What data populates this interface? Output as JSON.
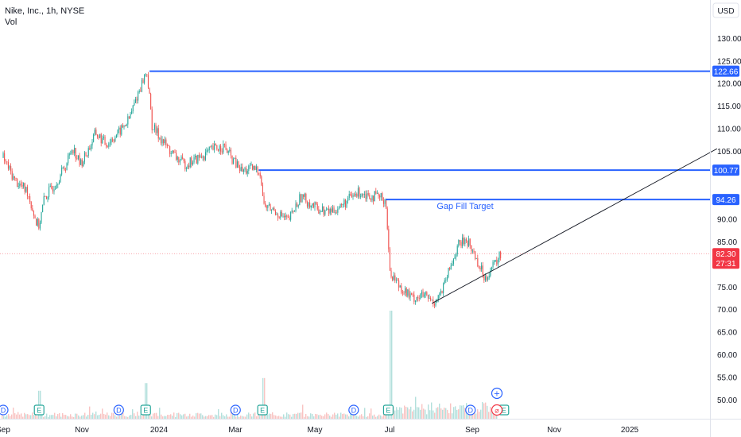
{
  "legend": {
    "symbol_line": "Nike, Inc., 1h, NYSE",
    "volume_label": "Vol"
  },
  "currency_button": "USD",
  "annotation_text": "Gap Fill Target",
  "colors": {
    "up": "#26a69a",
    "down": "#ef5350",
    "level_line": "#2962ff",
    "trend_line": "#131722",
    "price_tag": "#f23645"
  },
  "event_marker_labels": {
    "dividend": "D",
    "earnings": "E"
  },
  "chart_data": {
    "type": "candlestick",
    "title": "Nike, Inc., 1h, NYSE",
    "y_axis": {
      "ticks": [
        50,
        55,
        60,
        65,
        70,
        75,
        80,
        85,
        90,
        95,
        100,
        105,
        110,
        115,
        120,
        125,
        130
      ],
      "tick_labels": [
        "50.00",
        "55.00",
        "60.00",
        "65.00",
        "70.00",
        "75.00",
        "80.00",
        "85.00",
        "90.00",
        "",
        "",
        "105.00",
        "110.00",
        "115.00",
        "120.00",
        "125.00",
        "130.00"
      ],
      "range": [
        47,
        138
      ],
      "scale": "linear"
    },
    "x_axis": {
      "tick_labels": [
        "Sep",
        "Nov",
        "2024",
        "Mar",
        "May",
        "Jul",
        "Sep",
        "Nov",
        "2025"
      ]
    },
    "price_path": [
      [
        "2023-09-01",
        103.5
      ],
      [
        "2023-09-10",
        98.5
      ],
      [
        "2023-09-20",
        96
      ],
      [
        "2023-09-27",
        89
      ],
      [
        "2023-09-29",
        88.5
      ],
      [
        "2023-10-03",
        94.5
      ],
      [
        "2023-10-12",
        98
      ],
      [
        "2023-10-20",
        102
      ],
      [
        "2023-10-25",
        106
      ],
      [
        "2023-10-31",
        102
      ],
      [
        "2023-11-06",
        105
      ],
      [
        "2023-11-12",
        109
      ],
      [
        "2023-11-20",
        106.5
      ],
      [
        "2023-11-30",
        109
      ],
      [
        "2023-12-08",
        112
      ],
      [
        "2023-12-14",
        117
      ],
      [
        "2023-12-20",
        121.5
      ],
      [
        "2023-12-22",
        122.5
      ],
      [
        "2023-12-26",
        110.5
      ],
      [
        "2024-01-05",
        106.5
      ],
      [
        "2024-01-12",
        104
      ],
      [
        "2024-01-20",
        102
      ],
      [
        "2024-02-01",
        103.5
      ],
      [
        "2024-02-12",
        105.5
      ],
      [
        "2024-02-20",
        106
      ],
      [
        "2024-02-28",
        102.5
      ],
      [
        "2024-03-05",
        100.5
      ],
      [
        "2024-03-12",
        101
      ],
      [
        "2024-03-19",
        100.7
      ],
      [
        "2024-03-22",
        93
      ],
      [
        "2024-04-01",
        91.5
      ],
      [
        "2024-04-10",
        89.5
      ],
      [
        "2024-04-20",
        95
      ],
      [
        "2024-05-01",
        92.5
      ],
      [
        "2024-05-10",
        91.5
      ],
      [
        "2024-05-20",
        92.5
      ],
      [
        "2024-05-28",
        94.5
      ],
      [
        "2024-06-05",
        96
      ],
      [
        "2024-06-15",
        95
      ],
      [
        "2024-06-25",
        94.3
      ],
      [
        "2024-06-28",
        78.5
      ],
      [
        "2024-07-05",
        75.5
      ],
      [
        "2024-07-15",
        72.5
      ],
      [
        "2024-07-25",
        73
      ],
      [
        "2024-08-01",
        71.5
      ],
      [
        "2024-08-08",
        74
      ],
      [
        "2024-08-14",
        79
      ],
      [
        "2024-08-20",
        84
      ],
      [
        "2024-08-27",
        85.5
      ],
      [
        "2024-09-03",
        81.5
      ],
      [
        "2024-09-10",
        77
      ],
      [
        "2024-09-18",
        80
      ],
      [
        "2024-09-23",
        82.3
      ]
    ],
    "horizontal_levels": [
      {
        "price": 122.66,
        "label": "122.66",
        "from_date": "2023-12-24"
      },
      {
        "price": 100.77,
        "label": "100.77",
        "from_date": "2024-03-18"
      },
      {
        "price": 94.26,
        "label": "94.26",
        "from_date": "2024-06-25"
      }
    ],
    "trend_line": {
      "from": [
        "2024-07-31",
        71.3
      ],
      "to": [
        "2025-03-10",
        105.5
      ]
    },
    "last_price": {
      "value": "82.30",
      "countdown": "27:31"
    },
    "event_markers": [
      {
        "date": "2023-09-01",
        "type": "D"
      },
      {
        "date": "2023-09-29",
        "type": "E"
      },
      {
        "date": "2023-11-30",
        "type": "D"
      },
      {
        "date": "2023-12-21",
        "type": "E"
      },
      {
        "date": "2024-02-29",
        "type": "D"
      },
      {
        "date": "2024-03-21",
        "type": "E"
      },
      {
        "date": "2024-05-31",
        "type": "D"
      },
      {
        "date": "2024-06-27",
        "type": "E"
      },
      {
        "date": "2024-08-30",
        "type": "D"
      },
      {
        "date": "2024-09-25",
        "type": "E"
      }
    ],
    "volume": {
      "spikes": [
        [
          "2023-09-29",
          0.22
        ],
        [
          "2023-12-21",
          0.28
        ],
        [
          "2024-03-21",
          0.32
        ],
        [
          "2024-06-28",
          0.85
        ]
      ]
    }
  }
}
